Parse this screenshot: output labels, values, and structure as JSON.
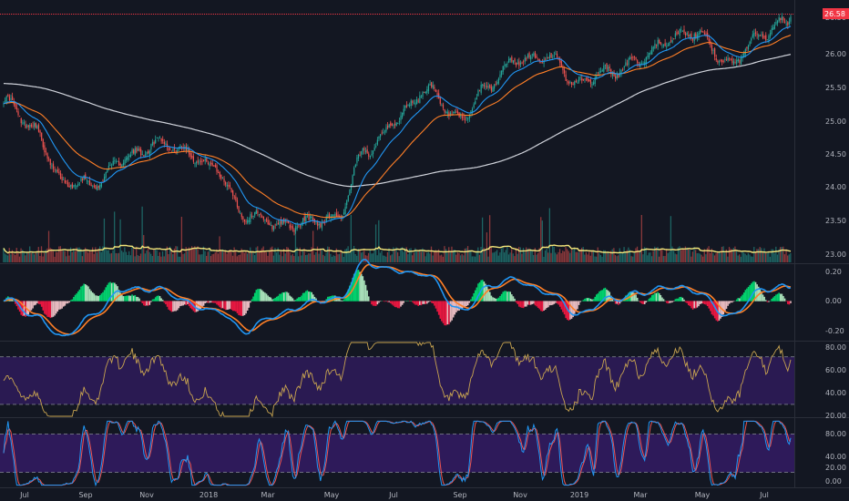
{
  "colors": {
    "background": "#131722",
    "up": "#26a69a",
    "down": "#ef5350",
    "ema_fast": "#2196f3",
    "ema_slow": "#ff7f27",
    "sma_200": "#d1d4dc",
    "volume_ma": "#f5e77a",
    "macd_line": "#2196f3",
    "signal_line": "#ff7f27",
    "hist_pos": "#00e676",
    "hist_neg": "#ff1744",
    "rsi_line": "#c8a450",
    "rsi_band": "#2a1a52",
    "stoch_k": "#2196f3",
    "stoch_d": "#ef5350",
    "stoch_band": "#2e1a5a",
    "last_price": "#f23645"
  },
  "last_price_label": "26.58",
  "x_axis_labels": [
    "Jul",
    "Sep",
    "Nov",
    "2018",
    "Mar",
    "May",
    "Jul",
    "Sep",
    "Nov",
    "2019",
    "Mar",
    "May",
    "Jul"
  ],
  "chart_data": [
    {
      "type": "candlestick",
      "panel": "price",
      "y_ticks": [
        "26.50",
        "26.00",
        "25.50",
        "25.00",
        "24.50",
        "24.00",
        "23.50",
        "23.00"
      ],
      "ylim": [
        22.95,
        26.72
      ],
      "last_value": 26.58,
      "close_anchors": {
        "x": [
          "2017-06",
          "2017-07",
          "2017-08",
          "2017-09",
          "2017-10",
          "2017-11",
          "2017-12",
          "2018-01",
          "2018-02",
          "2018-03",
          "2018-04",
          "2018-05",
          "2018-06",
          "2018-07",
          "2018-08",
          "2018-09",
          "2018-10",
          "2018-11",
          "2018-12",
          "2019-01",
          "2019-02",
          "2019-03",
          "2019-04",
          "2019-05",
          "2019-06",
          "2019-07",
          "2019-08"
        ],
        "y": [
          25.28,
          24.95,
          24.15,
          24.05,
          24.55,
          24.7,
          24.55,
          24.4,
          23.6,
          23.5,
          23.6,
          23.55,
          24.65,
          25.1,
          25.45,
          25.1,
          25.55,
          25.9,
          26.05,
          25.55,
          25.75,
          26.0,
          26.2,
          26.35,
          25.9,
          26.25,
          26.58
        ]
      },
      "series": [
        {
          "name": "",
          "kind": "ema_fast"
        },
        {
          "name": "",
          "kind": "ema_slow"
        },
        {
          "name": "",
          "kind": "sma_200"
        }
      ]
    },
    {
      "type": "bar",
      "panel": "volume",
      "note_series": [
        {
          "name": "",
          "kind": "volume"
        },
        {
          "name": "",
          "kind": "volume_ma"
        }
      ]
    },
    {
      "type": "line",
      "panel": "macd",
      "y_ticks": [
        "0.20",
        "0.00",
        "-0.20"
      ],
      "ylim": [
        -0.27,
        0.25
      ],
      "series": [
        {
          "name": "",
          "kind": "macd"
        },
        {
          "name": "",
          "kind": "signal"
        },
        {
          "name": "",
          "kind": "histogram"
        }
      ]
    },
    {
      "type": "line",
      "panel": "rsi",
      "y_ticks": [
        "80.00",
        "60.00",
        "40.00",
        "20.00"
      ],
      "ylim": [
        20,
        82
      ],
      "band": [
        30,
        70
      ]
    },
    {
      "type": "line",
      "panel": "stochastic",
      "y_ticks": [
        "80.00",
        "40.00",
        "20.00",
        "0.00"
      ],
      "ylim": [
        -2,
        102
      ],
      "band": [
        20,
        80
      ]
    }
  ]
}
